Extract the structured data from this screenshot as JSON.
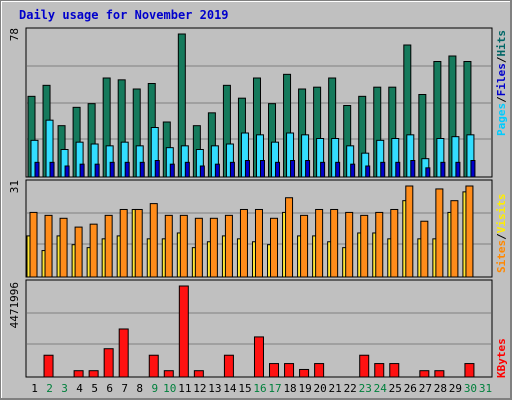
{
  "title": "Daily usage for November 2019",
  "colors": {
    "hits": "#006666",
    "hits_bar": "#157a5c",
    "files": "#00ccff",
    "files_bar": "#33ddff",
    "pages": "#0000cc",
    "visits": "#ffee00",
    "visits_bar": "#ffe633",
    "sites": "#ff8800",
    "sites_bar": "#ff8c1a",
    "kbytes": "#ff0000",
    "kbytes_bar": "#ff1111",
    "panel_bg": "#c0c0c0",
    "gridline": "#808080",
    "weekday_label": "#000000",
    "weekend_label": "#00803c"
  },
  "chart_data": [
    {
      "type": "bar",
      "panel": "hits-files-pages",
      "ymax_label": "78",
      "legend": [
        "Pages",
        "Files",
        "Hits"
      ],
      "ylim": [
        0,
        78
      ],
      "x": [
        1,
        2,
        3,
        4,
        5,
        6,
        7,
        8,
        9,
        10,
        11,
        12,
        13,
        14,
        15,
        16,
        17,
        18,
        19,
        20,
        21,
        22,
        23,
        24,
        25,
        26,
        27,
        28,
        29,
        30,
        31
      ],
      "weekend_days": [
        2,
        3,
        9,
        10,
        16,
        17,
        23,
        24,
        30,
        31
      ],
      "series": [
        {
          "name": "Hits",
          "values": [
            44,
            50,
            28,
            38,
            40,
            54,
            53,
            48,
            51,
            30,
            78,
            28,
            35,
            50,
            43,
            54,
            40,
            56,
            48,
            49,
            54,
            39,
            44,
            49,
            49,
            72,
            45,
            63,
            66,
            63,
            0
          ]
        },
        {
          "name": "Files",
          "values": [
            20,
            31,
            15,
            19,
            18,
            17,
            19,
            17,
            27,
            16,
            17,
            15,
            17,
            18,
            24,
            23,
            19,
            24,
            23,
            21,
            21,
            17,
            13,
            20,
            21,
            23,
            10,
            21,
            22,
            23,
            0
          ]
        },
        {
          "name": "Pages",
          "values": [
            8,
            8,
            6,
            7,
            7,
            8,
            8,
            8,
            9,
            7,
            8,
            6,
            7,
            8,
            9,
            9,
            8,
            9,
            9,
            8,
            8,
            7,
            6,
            8,
            8,
            9,
            5,
            8,
            8,
            9,
            0
          ]
        }
      ]
    },
    {
      "type": "bar",
      "panel": "sites-visits",
      "ymax_label": "31",
      "legend": [
        "Sites",
        "Visits"
      ],
      "ylim": [
        0,
        31
      ],
      "x": [
        1,
        2,
        3,
        4,
        5,
        6,
        7,
        8,
        9,
        10,
        11,
        12,
        13,
        14,
        15,
        16,
        17,
        18,
        19,
        20,
        21,
        22,
        23,
        24,
        25,
        26,
        27,
        28,
        29,
        30,
        31
      ],
      "series": [
        {
          "name": "Sites",
          "values": [
            22,
            21,
            20,
            17,
            18,
            21,
            23,
            23,
            25,
            21,
            21,
            20,
            20,
            21,
            23,
            23,
            20,
            27,
            21,
            23,
            23,
            22,
            21,
            22,
            23,
            31,
            19,
            30,
            26,
            31,
            0
          ]
        },
        {
          "name": "Visits",
          "values": [
            14,
            9,
            14,
            11,
            10,
            13,
            14,
            23,
            13,
            13,
            15,
            10,
            12,
            14,
            13,
            12,
            11,
            22,
            14,
            14,
            12,
            10,
            15,
            15,
            13,
            26,
            13,
            13,
            22,
            29,
            0
          ]
        }
      ]
    },
    {
      "type": "bar",
      "panel": "kbytes",
      "ymax_label": "4471996",
      "legend": [
        "KBytes"
      ],
      "ylim": [
        0,
        4471996
      ],
      "x": [
        1,
        2,
        3,
        4,
        5,
        6,
        7,
        8,
        9,
        10,
        11,
        12,
        13,
        14,
        15,
        16,
        17,
        18,
        19,
        20,
        21,
        22,
        23,
        24,
        25,
        26,
        27,
        28,
        29,
        30,
        31
      ],
      "series": [
        {
          "name": "KBytes",
          "values": [
            0,
            1070000,
            0,
            310000,
            310000,
            1390000,
            2360000,
            0,
            1070000,
            310000,
            4471996,
            310000,
            0,
            1070000,
            0,
            1970000,
            660000,
            660000,
            370000,
            660000,
            0,
            0,
            1070000,
            660000,
            660000,
            0,
            310000,
            310000,
            0,
            660000,
            0
          ]
        }
      ]
    }
  ],
  "x_labels": [
    "1",
    "2",
    "3",
    "4",
    "5",
    "6",
    "7",
    "8",
    "9",
    "10",
    "11",
    "12",
    "13",
    "14",
    "15",
    "16",
    "17",
    "18",
    "19",
    "20",
    "21",
    "22",
    "23",
    "24",
    "25",
    "26",
    "27",
    "28",
    "29",
    "30",
    "31"
  ]
}
